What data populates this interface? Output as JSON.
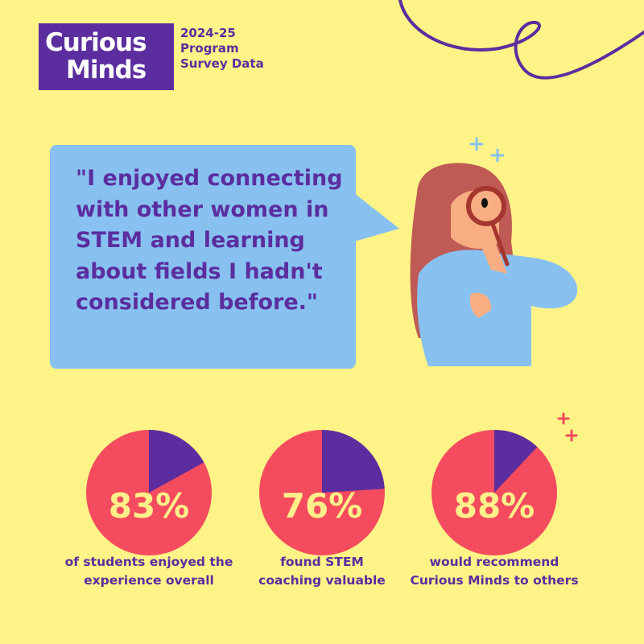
{
  "logo": {
    "line1": "Curious",
    "line2": "Minds"
  },
  "header": {
    "subtitle": "2024-25 Program Survey Data"
  },
  "quote": "\"I enjoyed connecting with other women in STEM and learning about fields I hadn't considered before.\"",
  "colors": {
    "background": "#FEF387",
    "purple": "#5B2D9E",
    "red": "#F44B5E",
    "blue": "#88C1F0",
    "percent_text": "#FFF08A"
  },
  "illustration": {
    "icon": "girl-with-magnifying-glass-icon"
  },
  "chart_data": [
    {
      "type": "pie",
      "label": "83%",
      "caption": "of students enjoyed the experience overall",
      "values": [
        83,
        17
      ]
    },
    {
      "type": "pie",
      "label": "76%",
      "caption": "found STEM coaching valuable",
      "values": [
        76,
        24
      ]
    },
    {
      "type": "pie",
      "label": "88%",
      "caption": "would recommend Curious Minds to others",
      "values": [
        88,
        12
      ]
    }
  ]
}
